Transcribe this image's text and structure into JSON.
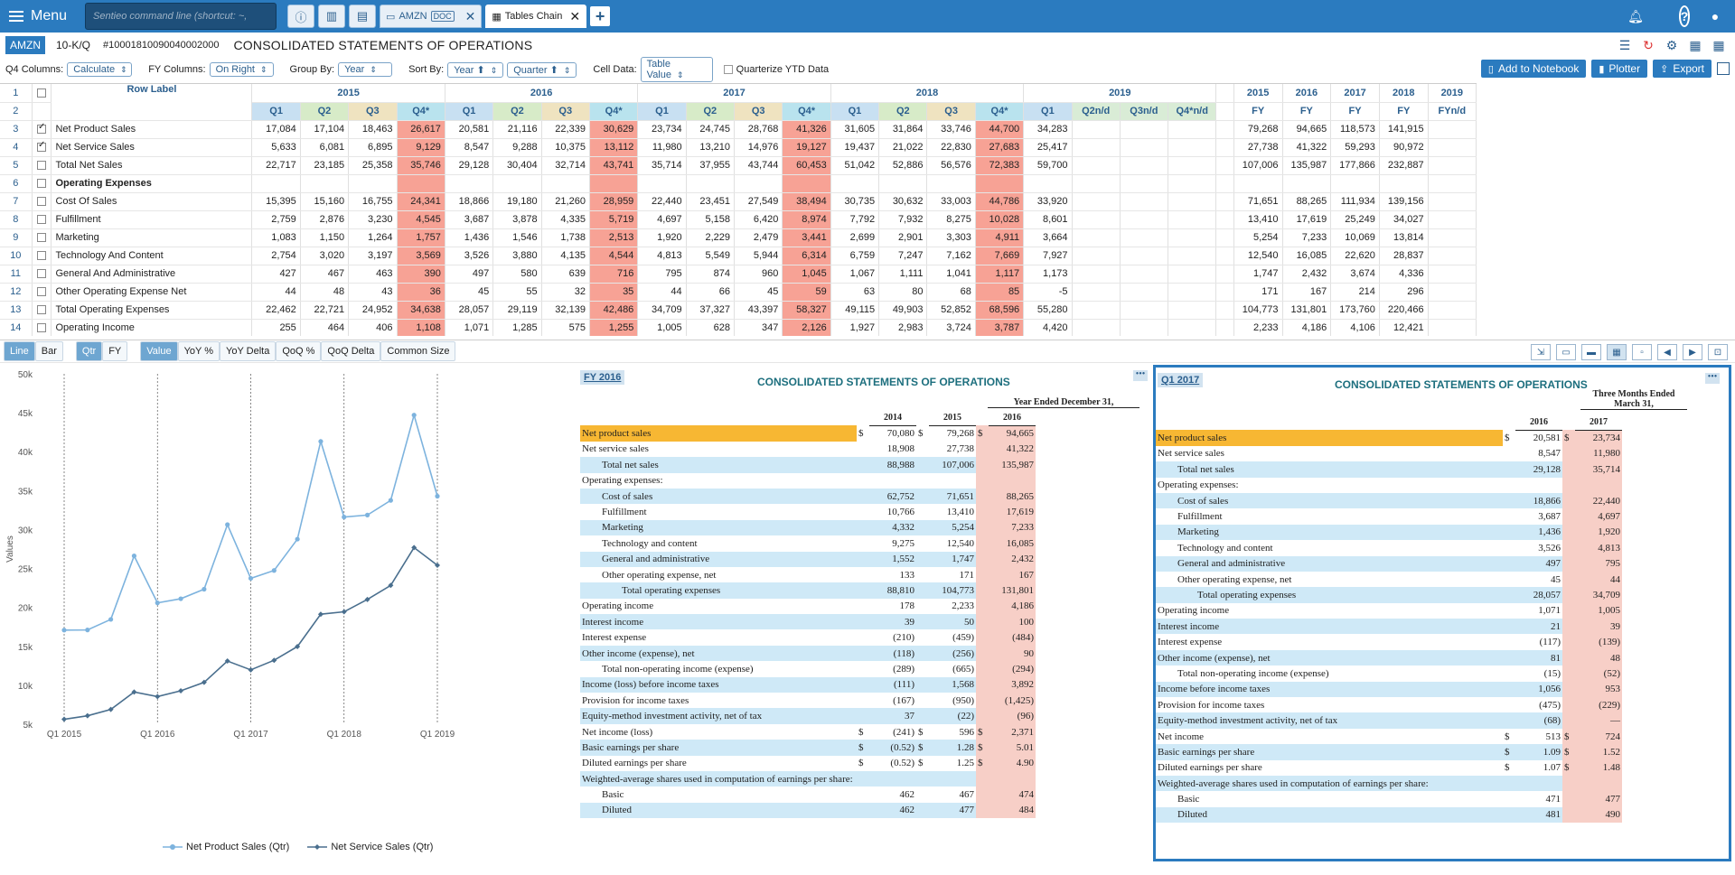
{
  "topbar": {
    "menu_label": "Menu",
    "cmd_placeholder": "Sentieo command line (shortcut: ~,",
    "tabs": [
      {
        "label": "AMZN",
        "badge": "DOC"
      },
      {
        "label": "Tables Chain"
      }
    ]
  },
  "doc": {
    "ticker": "AMZN",
    "type": "10-K/Q",
    "id": "#10001810090040002000",
    "title": "CONSOLIDATED STATEMENTS OF OPERATIONS"
  },
  "options": {
    "q4_label": "Q4 Columns:",
    "q4_value": "Calculate",
    "fy_label": "FY Columns:",
    "fy_value": "On Right",
    "group_label": "Group By:",
    "group_value": "Year",
    "sort_label": "Sort By:",
    "sort_value1": "Year ⬆",
    "sort_value2": "Quarter ⬆",
    "cell_label": "Cell Data:",
    "cell_value": "Table Value",
    "quarterize_label": "Quarterize YTD Data",
    "btn_notebook": "Add to Notebook",
    "btn_plotter": "Plotter",
    "btn_export": "Export"
  },
  "grid": {
    "row_label_header": "Row Label",
    "years": [
      "2015",
      "2016",
      "2017",
      "2018",
      "2019"
    ],
    "quarters": [
      "Q1",
      "Q2",
      "Q3",
      "Q4*",
      "Q1",
      "Q2",
      "Q3",
      "Q4*",
      "Q1",
      "Q2",
      "Q3",
      "Q4*",
      "Q1",
      "Q2",
      "Q3",
      "Q4*",
      "Q1",
      "Q2n/d",
      "Q3n/d",
      "Q4*n/d"
    ],
    "fy_years": [
      "2015",
      "2016",
      "2017",
      "2018",
      "2019"
    ],
    "fy_labels": [
      "FY",
      "FY",
      "FY",
      "FY",
      "FYn/d"
    ],
    "rows": [
      {
        "n": "3",
        "label": "Net Product Sales",
        "chk": true,
        "q": [
          "17,084",
          "17,104",
          "18,463",
          "26,617",
          "20,581",
          "21,116",
          "22,339",
          "30,629",
          "23,734",
          "24,745",
          "28,768",
          "41,326",
          "31,605",
          "31,864",
          "33,746",
          "44,700",
          "34,283",
          "",
          "",
          "",
          ""
        ],
        "fy": [
          "79,268",
          "94,665",
          "118,573",
          "141,915",
          ""
        ]
      },
      {
        "n": "4",
        "label": "Net Service Sales",
        "chk": true,
        "q": [
          "5,633",
          "6,081",
          "6,895",
          "9,129",
          "8,547",
          "9,288",
          "10,375",
          "13,112",
          "11,980",
          "13,210",
          "14,976",
          "19,127",
          "19,437",
          "21,022",
          "22,830",
          "27,683",
          "25,417",
          "",
          "",
          "",
          ""
        ],
        "fy": [
          "27,738",
          "41,322",
          "59,293",
          "90,972",
          ""
        ]
      },
      {
        "n": "5",
        "label": "Total Net Sales",
        "chk": false,
        "q": [
          "22,717",
          "23,185",
          "25,358",
          "35,746",
          "29,128",
          "30,404",
          "32,714",
          "43,741",
          "35,714",
          "37,955",
          "43,744",
          "60,453",
          "51,042",
          "52,886",
          "56,576",
          "72,383",
          "59,700",
          "",
          "",
          "",
          ""
        ],
        "fy": [
          "107,006",
          "135,987",
          "177,866",
          "232,887",
          ""
        ]
      },
      {
        "n": "6",
        "label": "Operating Expenses",
        "chk": false,
        "bold": true,
        "q": [
          "",
          "",
          "",
          "",
          "",
          "",
          "",
          "",
          "",
          "",
          "",
          "",
          "",
          "",
          "",
          "",
          "",
          "",
          "",
          "",
          ""
        ],
        "fy": [
          "",
          "",
          "",
          "",
          ""
        ]
      },
      {
        "n": "7",
        "label": "Cost Of Sales",
        "chk": false,
        "q": [
          "15,395",
          "15,160",
          "16,755",
          "24,341",
          "18,866",
          "19,180",
          "21,260",
          "28,959",
          "22,440",
          "23,451",
          "27,549",
          "38,494",
          "30,735",
          "30,632",
          "33,003",
          "44,786",
          "33,920",
          "",
          "",
          "",
          ""
        ],
        "fy": [
          "71,651",
          "88,265",
          "111,934",
          "139,156",
          ""
        ]
      },
      {
        "n": "8",
        "label": "Fulfillment",
        "chk": false,
        "q": [
          "2,759",
          "2,876",
          "3,230",
          "4,545",
          "3,687",
          "3,878",
          "4,335",
          "5,719",
          "4,697",
          "5,158",
          "6,420",
          "8,974",
          "7,792",
          "7,932",
          "8,275",
          "10,028",
          "8,601",
          "",
          "",
          "",
          ""
        ],
        "fy": [
          "13,410",
          "17,619",
          "25,249",
          "34,027",
          ""
        ]
      },
      {
        "n": "9",
        "label": "Marketing",
        "chk": false,
        "q": [
          "1,083",
          "1,150",
          "1,264",
          "1,757",
          "1,436",
          "1,546",
          "1,738",
          "2,513",
          "1,920",
          "2,229",
          "2,479",
          "3,441",
          "2,699",
          "2,901",
          "3,303",
          "4,911",
          "3,664",
          "",
          "",
          "",
          ""
        ],
        "fy": [
          "5,254",
          "7,233",
          "10,069",
          "13,814",
          ""
        ]
      },
      {
        "n": "10",
        "label": "Technology And Content",
        "chk": false,
        "q": [
          "2,754",
          "3,020",
          "3,197",
          "3,569",
          "3,526",
          "3,880",
          "4,135",
          "4,544",
          "4,813",
          "5,549",
          "5,944",
          "6,314",
          "6,759",
          "7,247",
          "7,162",
          "7,669",
          "7,927",
          "",
          "",
          "",
          ""
        ],
        "fy": [
          "12,540",
          "16,085",
          "22,620",
          "28,837",
          ""
        ]
      },
      {
        "n": "11",
        "label": "General And Administrative",
        "chk": false,
        "q": [
          "427",
          "467",
          "463",
          "390",
          "497",
          "580",
          "639",
          "716",
          "795",
          "874",
          "960",
          "1,045",
          "1,067",
          "1,111",
          "1,041",
          "1,117",
          "1,173",
          "",
          "",
          "",
          ""
        ],
        "fy": [
          "1,747",
          "2,432",
          "3,674",
          "4,336",
          ""
        ]
      },
      {
        "n": "12",
        "label": "Other Operating Expense Net",
        "chk": false,
        "q": [
          "44",
          "48",
          "43",
          "36",
          "45",
          "55",
          "32",
          "35",
          "44",
          "66",
          "45",
          "59",
          "63",
          "80",
          "68",
          "85",
          "-5",
          "",
          "",
          "",
          ""
        ],
        "fy": [
          "171",
          "167",
          "214",
          "296",
          ""
        ]
      },
      {
        "n": "13",
        "label": "Total Operating Expenses",
        "chk": false,
        "q": [
          "22,462",
          "22,721",
          "24,952",
          "34,638",
          "28,057",
          "29,119",
          "32,139",
          "42,486",
          "34,709",
          "37,327",
          "43,397",
          "58,327",
          "49,115",
          "49,903",
          "52,852",
          "68,596",
          "55,280",
          "",
          "",
          "",
          ""
        ],
        "fy": [
          "104,773",
          "131,801",
          "173,760",
          "220,466",
          ""
        ]
      },
      {
        "n": "14",
        "label": "Operating Income",
        "chk": false,
        "q": [
          "255",
          "464",
          "406",
          "1,108",
          "1,071",
          "1,285",
          "575",
          "1,255",
          "1,005",
          "628",
          "347",
          "2,126",
          "1,927",
          "2,983",
          "3,724",
          "3,787",
          "4,420",
          "",
          "",
          "",
          ""
        ],
        "fy": [
          "2,233",
          "4,186",
          "4,106",
          "12,421",
          ""
        ]
      }
    ]
  },
  "chart_controls": {
    "line": "Line",
    "bar": "Bar",
    "qtr": "Qtr",
    "fy": "FY",
    "value": "Value",
    "yoy": "YoY %",
    "yoyd": "YoY Delta",
    "qoq": "QoQ %",
    "qoqd": "QoQ Delta",
    "cs": "Common Size"
  },
  "chart_data": {
    "type": "line",
    "ylabel": "Values",
    "ylim": [
      5000,
      50000
    ],
    "yticks": [
      "5k",
      "10k",
      "15k",
      "20k",
      "25k",
      "30k",
      "35k",
      "40k",
      "45k",
      "50k"
    ],
    "xticks": [
      "Q1 2015",
      "Q1 2016",
      "Q1 2017",
      "Q1 2018",
      "Q1 2019"
    ],
    "x": [
      "Q1 2015",
      "Q2 2015",
      "Q3 2015",
      "Q4 2015",
      "Q1 2016",
      "Q2 2016",
      "Q3 2016",
      "Q4 2016",
      "Q1 2017",
      "Q2 2017",
      "Q3 2017",
      "Q4 2017",
      "Q1 2018",
      "Q2 2018",
      "Q3 2018",
      "Q4 2018",
      "Q1 2019"
    ],
    "series": [
      {
        "name": "Net Product Sales (Qtr)",
        "color": "#7db3de",
        "values": [
          17084,
          17104,
          18463,
          26617,
          20581,
          21116,
          22339,
          30629,
          23734,
          24745,
          28768,
          41326,
          31605,
          31864,
          33746,
          44700,
          34283
        ]
      },
      {
        "name": "Net Service Sales (Qtr)",
        "color": "#4a6f8e",
        "values": [
          5633,
          6081,
          6895,
          9129,
          8547,
          9288,
          10375,
          13112,
          11980,
          13210,
          14976,
          19127,
          19437,
          21022,
          22830,
          27683,
          25417
        ]
      }
    ],
    "grid": "vertical dashed at Q1"
  },
  "fy2016": {
    "tag": "FY 2016",
    "title": "CONSOLIDATED STATEMENTS OF OPERATIONS",
    "period": "Year Ended December 31,",
    "cols": [
      "2014",
      "2015",
      "2016"
    ],
    "rows": [
      {
        "l": "Net product sales",
        "ind": 0,
        "d": [
          "$",
          "$",
          "$"
        ],
        "v": [
          "70,080",
          "79,268",
          "94,665"
        ],
        "hl": true
      },
      {
        "l": "Net service sales",
        "ind": 0,
        "v": [
          "18,908",
          "27,738",
          "41,322"
        ]
      },
      {
        "l": "Total net sales",
        "ind": 1,
        "v": [
          "88,988",
          "107,006",
          "135,987"
        ],
        "sh": true
      },
      {
        "l": "Operating expenses:",
        "ind": 0,
        "v": [
          "",
          "",
          ""
        ]
      },
      {
        "l": "Cost of sales",
        "ind": 1,
        "v": [
          "62,752",
          "71,651",
          "88,265"
        ],
        "sh": true
      },
      {
        "l": "Fulfillment",
        "ind": 1,
        "v": [
          "10,766",
          "13,410",
          "17,619"
        ]
      },
      {
        "l": "Marketing",
        "ind": 1,
        "v": [
          "4,332",
          "5,254",
          "7,233"
        ],
        "sh": true
      },
      {
        "l": "Technology and content",
        "ind": 1,
        "v": [
          "9,275",
          "12,540",
          "16,085"
        ]
      },
      {
        "l": "General and administrative",
        "ind": 1,
        "v": [
          "1,552",
          "1,747",
          "2,432"
        ],
        "sh": true
      },
      {
        "l": "Other operating expense, net",
        "ind": 1,
        "v": [
          "133",
          "171",
          "167"
        ]
      },
      {
        "l": "Total operating expenses",
        "ind": 2,
        "v": [
          "88,810",
          "104,773",
          "131,801"
        ],
        "sh": true
      },
      {
        "l": "Operating income",
        "ind": 0,
        "v": [
          "178",
          "2,233",
          "4,186"
        ]
      },
      {
        "l": "Interest income",
        "ind": 0,
        "v": [
          "39",
          "50",
          "100"
        ],
        "sh": true
      },
      {
        "l": "Interest expense",
        "ind": 0,
        "v": [
          "(210)",
          "(459)",
          "(484)"
        ]
      },
      {
        "l": "Other income (expense), net",
        "ind": 0,
        "v": [
          "(118)",
          "(256)",
          "90"
        ],
        "sh": true
      },
      {
        "l": "Total non-operating income (expense)",
        "ind": 1,
        "v": [
          "(289)",
          "(665)",
          "(294)"
        ]
      },
      {
        "l": "Income (loss) before income taxes",
        "ind": 0,
        "v": [
          "(111)",
          "1,568",
          "3,892"
        ],
        "sh": true
      },
      {
        "l": "Provision for income taxes",
        "ind": 0,
        "v": [
          "(167)",
          "(950)",
          "(1,425)"
        ]
      },
      {
        "l": "Equity-method investment activity, net of tax",
        "ind": 0,
        "v": [
          "37",
          "(22)",
          "(96)"
        ],
        "sh": true
      },
      {
        "l": "Net income (loss)",
        "ind": 0,
        "d": [
          "$",
          "$",
          "$"
        ],
        "v": [
          "(241)",
          "596",
          "2,371"
        ]
      },
      {
        "l": "Basic earnings per share",
        "ind": 0,
        "d": [
          "$",
          "$",
          "$"
        ],
        "v": [
          "(0.52)",
          "1.28",
          "5.01"
        ],
        "sh": true
      },
      {
        "l": "Diluted earnings per share",
        "ind": 0,
        "d": [
          "$",
          "$",
          "$"
        ],
        "v": [
          "(0.52)",
          "1.25",
          "4.90"
        ]
      },
      {
        "l": "Weighted-average shares used in computation of earnings per share:",
        "ind": 0,
        "v": [
          "",
          "",
          ""
        ],
        "sh": true
      },
      {
        "l": "Basic",
        "ind": 1,
        "v": [
          "462",
          "467",
          "474"
        ]
      },
      {
        "l": "Diluted",
        "ind": 1,
        "v": [
          "462",
          "477",
          "484"
        ],
        "sh": true
      }
    ]
  },
  "q12017": {
    "tag": "Q1 2017",
    "title": "CONSOLIDATED STATEMENTS OF OPERATIONS",
    "period": "Three Months Ended March 31,",
    "cols": [
      "2016",
      "2017"
    ],
    "rows": [
      {
        "l": "Net product sales",
        "ind": 0,
        "d": [
          "$",
          "$"
        ],
        "v": [
          "20,581",
          "23,734"
        ],
        "hl": true
      },
      {
        "l": "Net service sales",
        "ind": 0,
        "v": [
          "8,547",
          "11,980"
        ]
      },
      {
        "l": "Total net sales",
        "ind": 1,
        "v": [
          "29,128",
          "35,714"
        ],
        "sh": true
      },
      {
        "l": "Operating expenses:",
        "ind": 0,
        "v": [
          "",
          ""
        ]
      },
      {
        "l": "Cost of sales",
        "ind": 1,
        "v": [
          "18,866",
          "22,440"
        ],
        "sh": true
      },
      {
        "l": "Fulfillment",
        "ind": 1,
        "v": [
          "3,687",
          "4,697"
        ]
      },
      {
        "l": "Marketing",
        "ind": 1,
        "v": [
          "1,436",
          "1,920"
        ],
        "sh": true
      },
      {
        "l": "Technology and content",
        "ind": 1,
        "v": [
          "3,526",
          "4,813"
        ]
      },
      {
        "l": "General and administrative",
        "ind": 1,
        "v": [
          "497",
          "795"
        ],
        "sh": true
      },
      {
        "l": "Other operating expense, net",
        "ind": 1,
        "v": [
          "45",
          "44"
        ]
      },
      {
        "l": "Total operating expenses",
        "ind": 2,
        "v": [
          "28,057",
          "34,709"
        ],
        "sh": true
      },
      {
        "l": "Operating income",
        "ind": 0,
        "v": [
          "1,071",
          "1,005"
        ]
      },
      {
        "l": "Interest income",
        "ind": 0,
        "v": [
          "21",
          "39"
        ],
        "sh": true
      },
      {
        "l": "Interest expense",
        "ind": 0,
        "v": [
          "(117)",
          "(139)"
        ]
      },
      {
        "l": "Other income (expense), net",
        "ind": 0,
        "v": [
          "81",
          "48"
        ],
        "sh": true
      },
      {
        "l": "Total non-operating income (expense)",
        "ind": 1,
        "v": [
          "(15)",
          "(52)"
        ]
      },
      {
        "l": "Income before income taxes",
        "ind": 0,
        "v": [
          "1,056",
          "953"
        ],
        "sh": true
      },
      {
        "l": "Provision for income taxes",
        "ind": 0,
        "v": [
          "(475)",
          "(229)"
        ]
      },
      {
        "l": "Equity-method investment activity, net of tax",
        "ind": 0,
        "v": [
          "(68)",
          "—"
        ],
        "sh": true
      },
      {
        "l": "Net income",
        "ind": 0,
        "d": [
          "$",
          "$"
        ],
        "v": [
          "513",
          "724"
        ]
      },
      {
        "l": "Basic earnings per share",
        "ind": 0,
        "d": [
          "$",
          "$"
        ],
        "v": [
          "1.09",
          "1.52"
        ],
        "sh": true
      },
      {
        "l": "Diluted earnings per share",
        "ind": 0,
        "d": [
          "$",
          "$"
        ],
        "v": [
          "1.07",
          "1.48"
        ]
      },
      {
        "l": "Weighted-average shares used in computation of earnings per share:",
        "ind": 0,
        "v": [
          "",
          ""
        ],
        "sh": true
      },
      {
        "l": "Basic",
        "ind": 1,
        "v": [
          "471",
          "477"
        ]
      },
      {
        "l": "Diluted",
        "ind": 1,
        "v": [
          "481",
          "490"
        ],
        "sh": true
      }
    ]
  }
}
